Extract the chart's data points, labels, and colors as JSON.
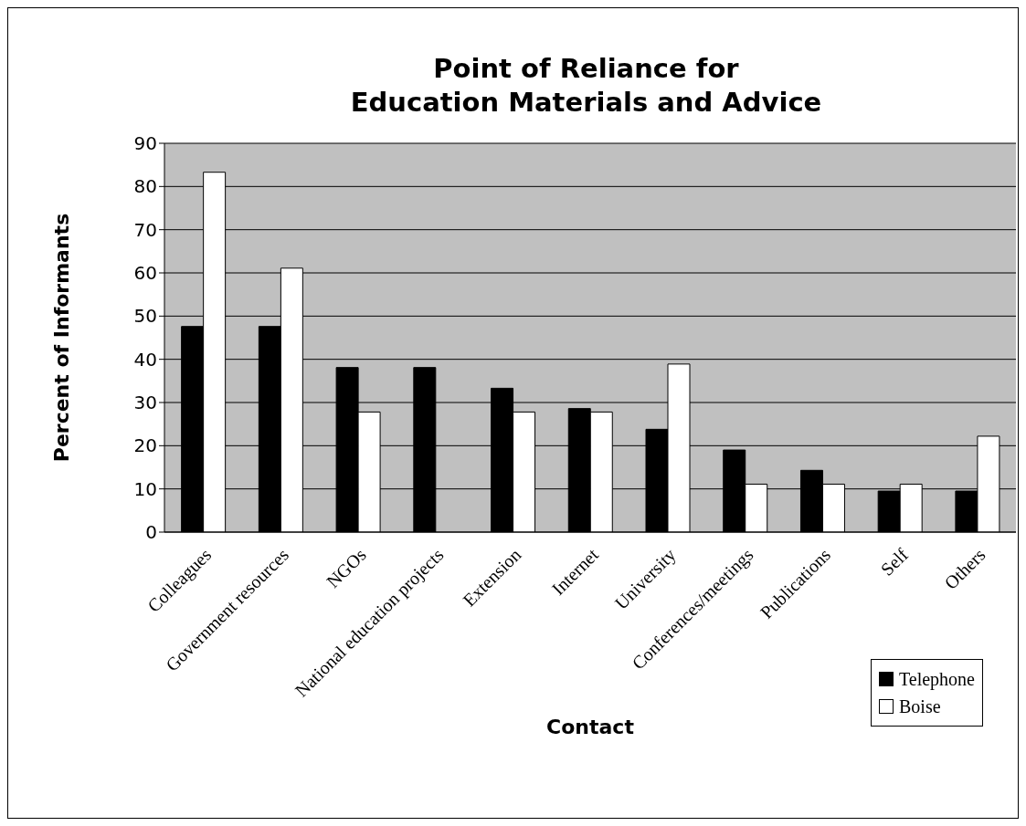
{
  "chart_data": {
    "type": "bar",
    "title": "Point of Reliance for\nEducation Materials and Advice",
    "xlabel": "Contact",
    "ylabel": "Percent of Informants",
    "categories": [
      "Colleagues",
      "Government resources",
      "NGOs",
      "National education projects",
      "Extension",
      "Internet",
      "University",
      "Conferences/meetings",
      "Publications",
      "Self",
      "Others"
    ],
    "series": [
      {
        "name": "Telephone",
        "color": "#000000",
        "values": [
          47.6,
          47.6,
          38.1,
          38.1,
          33.3,
          28.6,
          23.8,
          19.0,
          14.3,
          9.5,
          9.5
        ]
      },
      {
        "name": "Boise",
        "color": "#ffffff",
        "values": [
          83.3,
          61.1,
          27.8,
          null,
          27.8,
          27.8,
          38.9,
          11.1,
          11.1,
          11.1,
          22.2
        ]
      }
    ],
    "ylim": [
      0,
      90
    ],
    "yticks": [
      0,
      10,
      20,
      30,
      40,
      50,
      60,
      70,
      80,
      90
    ],
    "grid": "y",
    "legend": "bottom right"
  }
}
